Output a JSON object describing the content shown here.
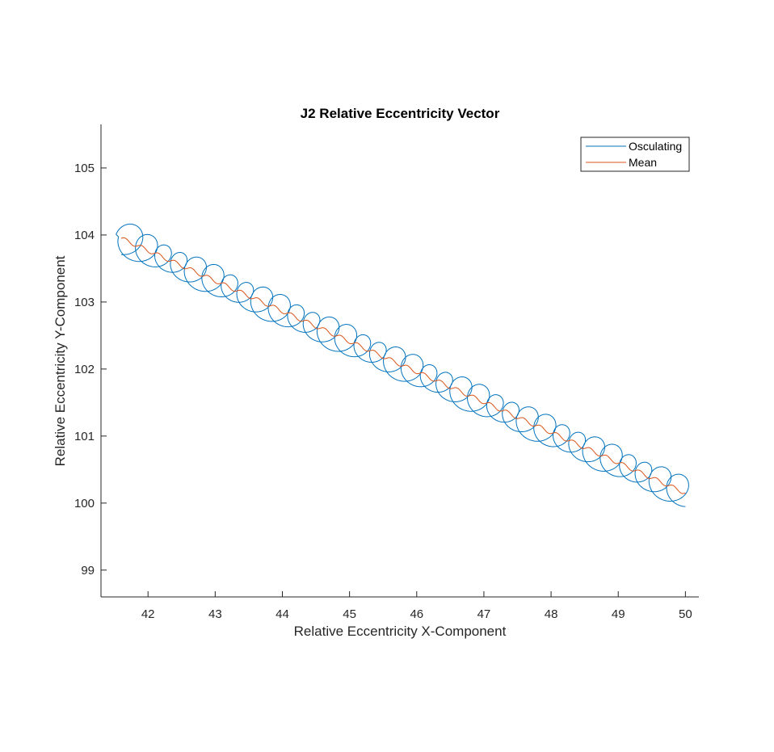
{
  "chart_data": {
    "type": "line",
    "title": "J2 Relative Eccentricity Vector",
    "xlabel": "Relative Eccentricity X-Component",
    "ylabel": "Relative Eccentricity Y-Component",
    "xlim": [
      41.3,
      50.2
    ],
    "ylim": [
      98.6,
      105.65
    ],
    "xticks": [
      42,
      43,
      44,
      45,
      46,
      47,
      48,
      49,
      50
    ],
    "yticks": [
      99,
      100,
      101,
      102,
      103,
      104,
      105
    ],
    "xtick_labels": [
      "42",
      "43",
      "44",
      "45",
      "46",
      "47",
      "48",
      "49",
      "50"
    ],
    "ytick_labels": [
      "99",
      "100",
      "101",
      "102",
      "103",
      "104",
      "105"
    ],
    "grid": false,
    "legend_position": "top-right",
    "legend": [
      "Osculating",
      "Mean"
    ],
    "series": [
      {
        "name": "Osculating",
        "color": "#0072bd",
        "start": [
          41.6,
          103.95
        ],
        "end": [
          50.0,
          100.15
        ],
        "loops": 34,
        "loop_radius": 0.22,
        "description_values": "osculating trajectory: mean drift plus periodic circles of ~0.22 radius"
      },
      {
        "name": "Mean",
        "color": "#d95319",
        "start": [
          41.6,
          103.95
        ],
        "end": [
          50.0,
          100.15
        ]
      }
    ]
  }
}
